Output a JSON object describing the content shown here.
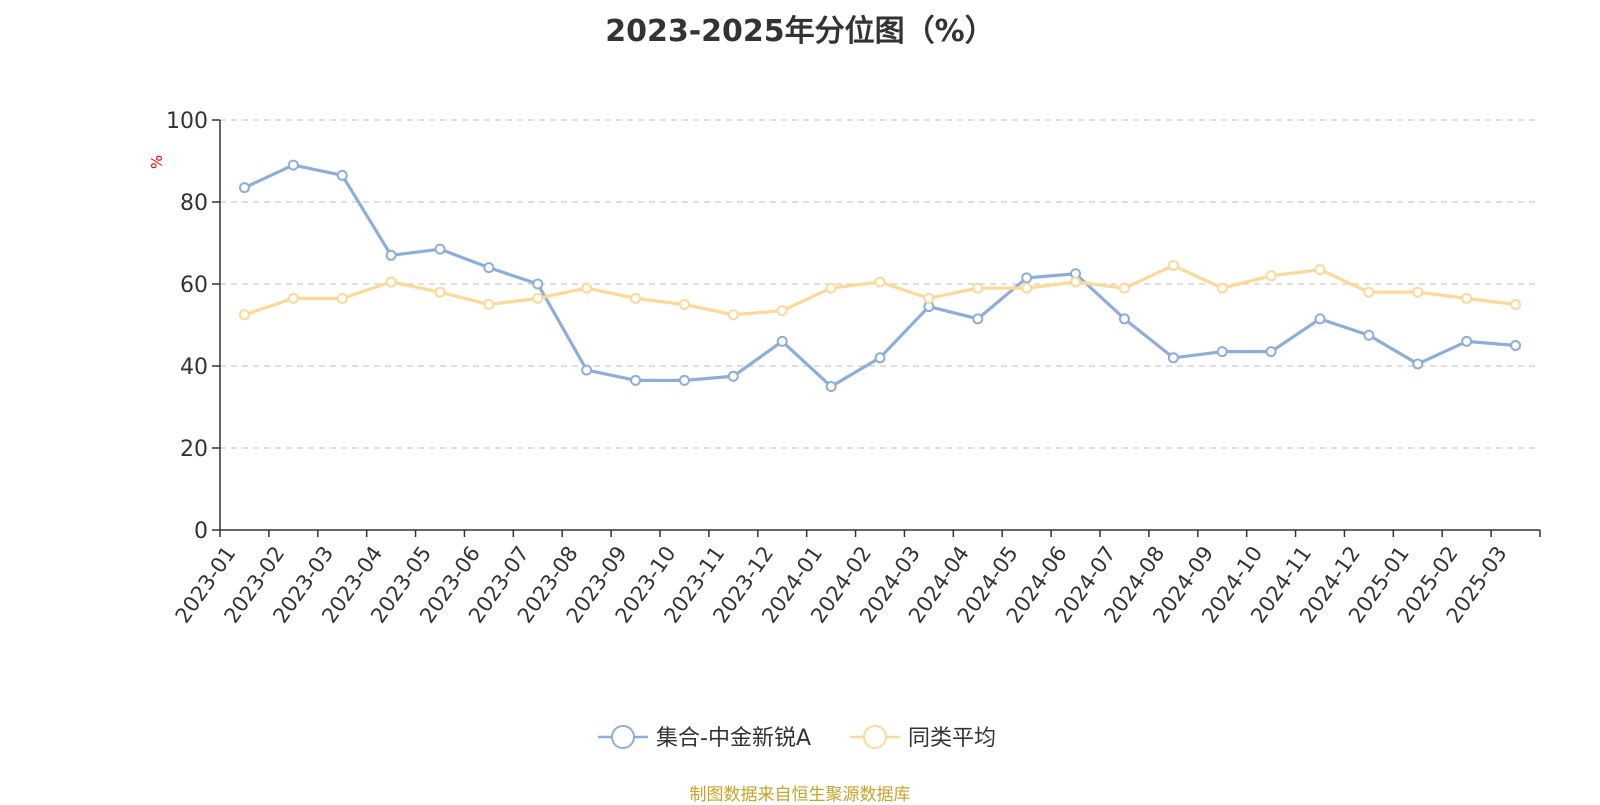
{
  "colors": {
    "series_1": "#8eadd8",
    "series_2": "#fad999",
    "axis": "#333333",
    "grid": "#cccccc",
    "tick_label": "#333333",
    "ylabel": "#ff0000",
    "source": "#c9a227",
    "background": "#ffffff"
  },
  "source_text": "制图数据来自恒生聚源数据库",
  "chart_data": {
    "type": "line",
    "title": "2023-2025年分位图（%）",
    "xlabel": "",
    "ylabel": "%",
    "ylim": [
      0,
      100
    ],
    "yticks": [
      0,
      20,
      40,
      60,
      80,
      100
    ],
    "grid": "horizontal dashed",
    "legend_position": "bottom-center",
    "categories": [
      "2023-01",
      "2023-02",
      "2023-03",
      "2023-04",
      "2023-05",
      "2023-06",
      "2023-07",
      "2023-08",
      "2023-09",
      "2023-10",
      "2023-11",
      "2023-12",
      "2024-01",
      "2024-02",
      "2024-03",
      "2024-04",
      "2024-05",
      "2024-06",
      "2024-07",
      "2024-08",
      "2024-09",
      "2024-10",
      "2024-11",
      "2024-12",
      "2025-01",
      "2025-02",
      "2025-03"
    ],
    "series": [
      {
        "name": "集合-中金新锐A",
        "color": "#8eadd8",
        "values": [
          83.5,
          89.0,
          86.5,
          67.0,
          68.5,
          64.0,
          60.0,
          39.0,
          36.5,
          36.5,
          37.5,
          46.0,
          35.0,
          42.0,
          54.5,
          51.5,
          61.5,
          62.5,
          51.5,
          42.0,
          43.5,
          43.5,
          51.5,
          47.5,
          40.5,
          46.0,
          45.0
        ]
      },
      {
        "name": "同类平均",
        "color": "#fad999",
        "values": [
          52.5,
          56.5,
          56.5,
          60.5,
          58.0,
          55.0,
          56.5,
          59.0,
          56.5,
          55.0,
          52.5,
          53.5,
          59.0,
          60.5,
          56.5,
          59.0,
          59.0,
          60.5,
          59.0,
          64.5,
          59.0,
          62.0,
          63.5,
          58.0,
          58.0,
          56.5,
          55.0
        ]
      }
    ]
  }
}
